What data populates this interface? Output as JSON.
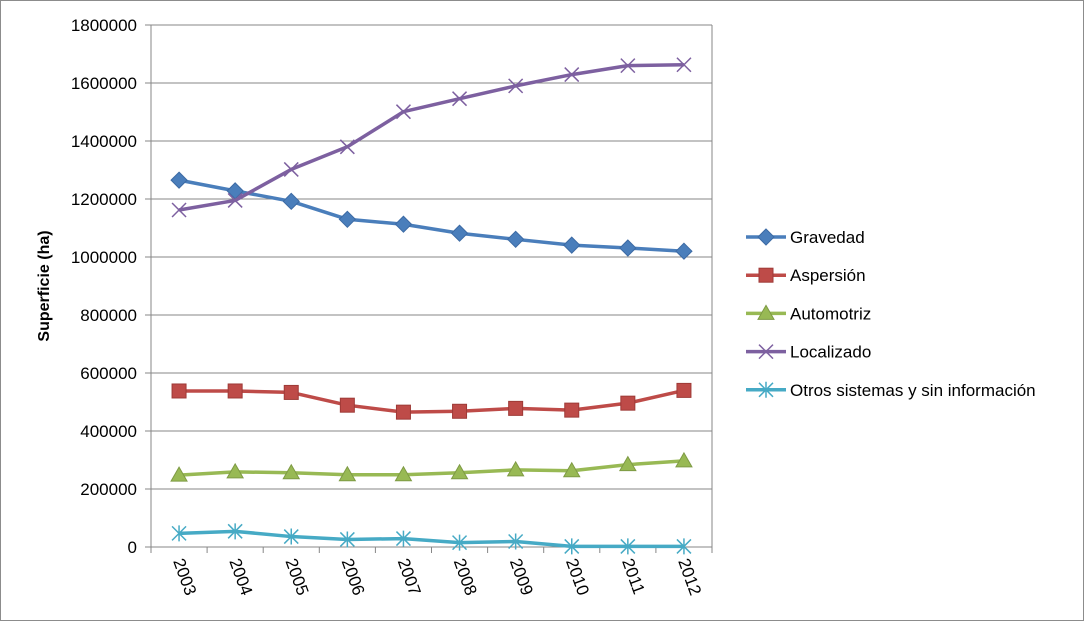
{
  "chart_data": {
    "type": "line",
    "title": "",
    "xlabel": "",
    "ylabel": "Superficie (ha)",
    "categories": [
      "2003",
      "2004",
      "2005",
      "2006",
      "2007",
      "2008",
      "2009",
      "2010",
      "2011",
      "2012"
    ],
    "ylim": [
      0,
      1800000
    ],
    "yticks": [
      "0",
      "200000",
      "400000",
      "600000",
      "800000",
      "1000000",
      "1200000",
      "1400000",
      "1600000",
      "1800000"
    ],
    "grid": true,
    "legend_position": "right",
    "series": [
      {
        "name": "Gravedad",
        "color": "#4a7ebb",
        "marker": "diamond",
        "values": [
          1265000,
          1228000,
          1192000,
          1130000,
          1113000,
          1082000,
          1061000,
          1041000,
          1031000,
          1020000
        ]
      },
      {
        "name": "Aspersión",
        "color": "#be4b48",
        "marker": "square",
        "values": [
          538000,
          538000,
          533000,
          489000,
          465000,
          468000,
          478000,
          472000,
          496000,
          540000
        ]
      },
      {
        "name": "Automotriz",
        "color": "#98b954",
        "marker": "triangle",
        "values": [
          248000,
          259000,
          256000,
          249000,
          249000,
          256000,
          266000,
          263000,
          284000,
          297000
        ]
      },
      {
        "name": "Localizado",
        "color": "#7d60a0",
        "marker": "x",
        "values": [
          1162000,
          1195000,
          1302000,
          1380000,
          1501000,
          1546000,
          1590000,
          1629000,
          1660000,
          1663000
        ]
      },
      {
        "name": "Otros sistemas y sin información",
        "color": "#46aac5",
        "marker": "asterisk",
        "values": [
          47000,
          54000,
          36000,
          26000,
          29000,
          15000,
          19000,
          2000,
          2000,
          2000
        ]
      }
    ]
  }
}
